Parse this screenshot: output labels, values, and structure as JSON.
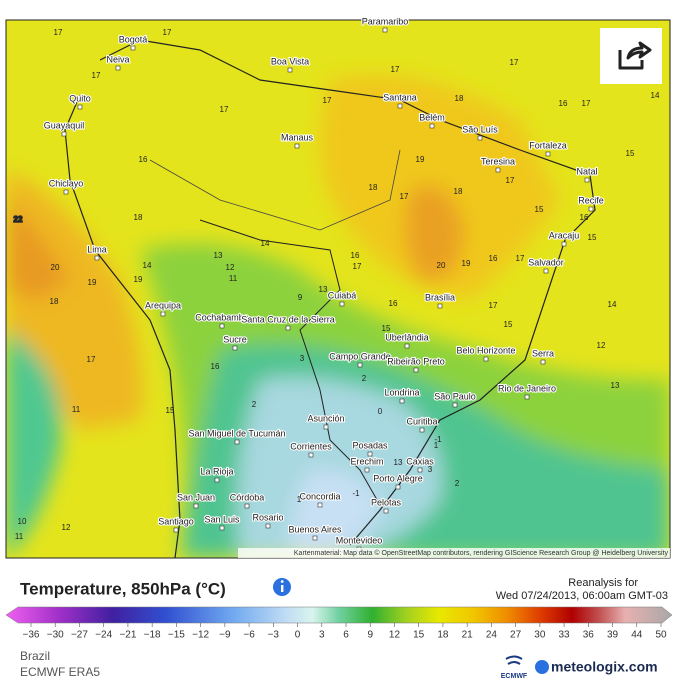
{
  "map": {
    "city_labels": [
      "Paramaribo",
      "Bogotá",
      "Neiva",
      "Boa Vista",
      "Quito",
      "Santana",
      "Guayaquil",
      "Belém",
      "São Luís",
      "Manaus",
      "Fortaleza",
      "Teresina",
      "Natal",
      "Chiclayo",
      "Recife",
      "Aracaju",
      "Lima",
      "Salvador",
      "Cuiabá",
      "Brasília",
      "Arequipa",
      "Cochabamba",
      "Santa Cruz de la Sierra",
      "Sucre",
      "Uberlândia",
      "Belo Horizonte",
      "Serra",
      "Campo Grande",
      "Ribeirão Preto",
      "Rio de Janeiro",
      "Londrina",
      "São Paulo",
      "Asunción",
      "Curitiba",
      "San Miguel de Tucumán",
      "Corrientes",
      "Posadas",
      "Erechim",
      "Caxias",
      "La Rioja",
      "Porto Alegre",
      "San Juan",
      "Córdoba",
      "Concordia",
      "Pelotas",
      "Rosario",
      "San Luis",
      "Santiago",
      "Buenos Aires",
      "Montevideo"
    ],
    "contour_labels": [
      17,
      17,
      17,
      17,
      17,
      17,
      17,
      18,
      16,
      17,
      14,
      19,
      16,
      18,
      17,
      18,
      17,
      15,
      15,
      16,
      22,
      18,
      19,
      14,
      20,
      19,
      18,
      14,
      13,
      12,
      11,
      17,
      16,
      20,
      19,
      16,
      17,
      15,
      14,
      12,
      16,
      15,
      17,
      15,
      13,
      13,
      17,
      11,
      10,
      11,
      12,
      16,
      15,
      3,
      2,
      9,
      2,
      13,
      1,
      0,
      -1,
      2,
      3,
      -1,
      1
    ],
    "attribution": "Kartenmaterial: Map data © OpenStreetMap contributors, rendering GIScience Research Group @ Heidelberg University"
  },
  "legend": {
    "title": "Temperature, 850hPa (°C)",
    "reanalysis_label": "Reanalysis for",
    "datetime": "Wed 07/24/2013, 06:00am GMT-03",
    "colorbar_ticks": [
      {
        "value": -36,
        "label": "−36"
      },
      {
        "value": -30,
        "label": "−30"
      },
      {
        "value": -27,
        "label": "−27"
      },
      {
        "value": -24,
        "label": "−24"
      },
      {
        "value": -21,
        "label": "−21"
      },
      {
        "value": -18,
        "label": "−18"
      },
      {
        "value": -15,
        "label": "−15"
      },
      {
        "value": -12,
        "label": "−12"
      },
      {
        "value": -9,
        "label": "−9"
      },
      {
        "value": -6,
        "label": "−6"
      },
      {
        "value": -3,
        "label": "−3"
      },
      0,
      3,
      6,
      9,
      12,
      15,
      18,
      21,
      24,
      27,
      30,
      33,
      36,
      39,
      44,
      50
    ]
  },
  "footer": {
    "region": "Brazil",
    "model": "ECMWF ERA5",
    "logo_left": "ECMWF",
    "logo_right": "meteologix.com"
  }
}
